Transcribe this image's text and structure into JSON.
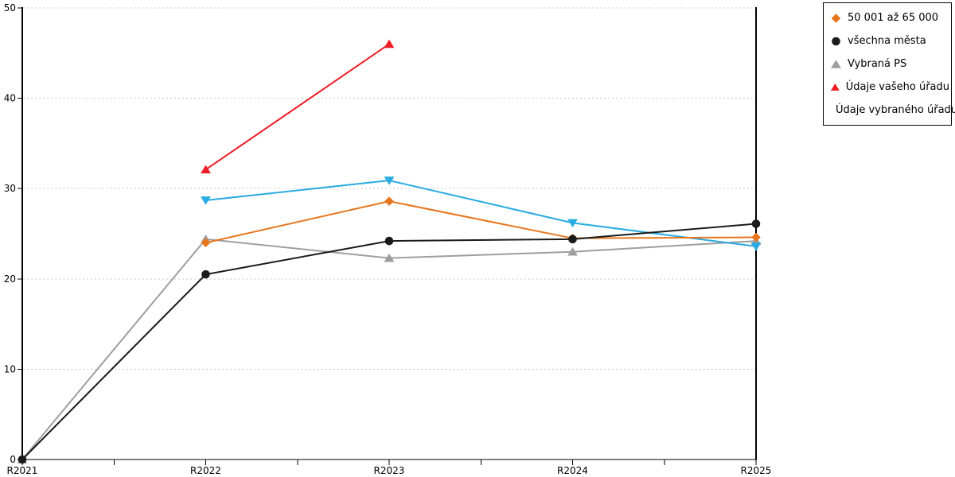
{
  "chart_data": {
    "type": "line",
    "title": "",
    "categories": [
      "R2021",
      "R2022",
      "R2023",
      "R2024",
      "R2025"
    ],
    "ylim": [
      0,
      50
    ],
    "y_ticks": [
      0,
      10,
      20,
      30,
      40,
      50
    ],
    "grid": "horizontal-dotted",
    "x_minor_ticks": true,
    "legend_position": "outside-top-right",
    "series": [
      {
        "name": "50 001 až 65 000",
        "marker": "diamond",
        "color": "#e8761d",
        "values": [
          null,
          24.0,
          28.6,
          24.5,
          24.6
        ]
      },
      {
        "name": "všechna města",
        "marker": "circle",
        "color": "#1a1a1a",
        "values": [
          0,
          20.5,
          24.2,
          24.4,
          26.1
        ]
      },
      {
        "name": "Vybraná PS",
        "marker": "triangle-up",
        "color": "#9e9e9e",
        "values": [
          0,
          24.4,
          22.3,
          23.0,
          24.2
        ]
      },
      {
        "name": "Údaje vašeho úřadu",
        "marker": "triangle-up",
        "color": "#ee1c25",
        "values": [
          null,
          32.1,
          46.0,
          null,
          null
        ]
      },
      {
        "name": "Údaje vybraného úřadu",
        "marker": "triangle-down",
        "color": "#29abe2",
        "values": [
          null,
          28.7,
          30.9,
          26.2,
          23.6
        ]
      }
    ],
    "draw_order": [
      2,
      4,
      0,
      1,
      3
    ],
    "axis_color": "#000000",
    "grid_color": "#c9c9c9",
    "background": "#ffffff"
  }
}
